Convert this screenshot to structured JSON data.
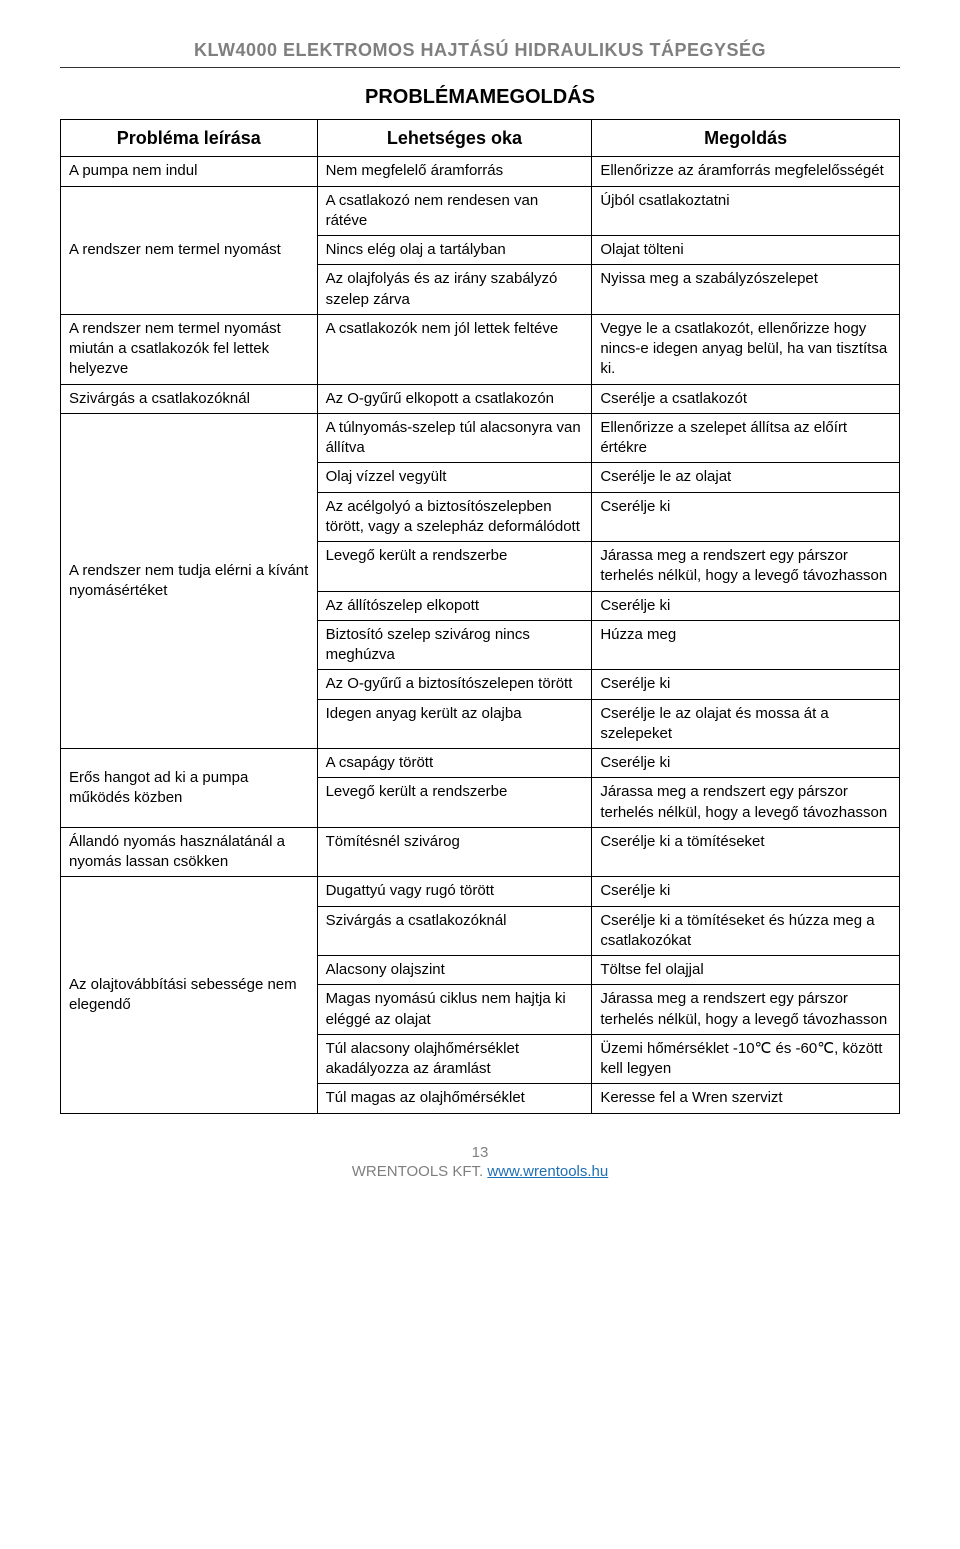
{
  "header": {
    "doc_title": "KLW4000 ELEKTROMOS HAJTÁSÚ HIDRAULIKUS TÁPEGYSÉG",
    "section_title": "PROBLÉMAMEGOLDÁS"
  },
  "table": {
    "columns": [
      "Probléma leírása",
      "Lehetséges oka",
      "Megoldás"
    ],
    "rows": [
      {
        "problem": "A pumpa nem indul",
        "cause": "Nem megfelelő áramforrás",
        "solution": "Ellenőrizze az áramforrás megfelelősségét",
        "rowspan": 1
      },
      {
        "problem": "A rendszer nem termel nyomást",
        "cause": "A csatlakozó nem rendesen van rátéve",
        "solution": "Újból csatlakoztatni",
        "rowspan": 3
      },
      {
        "cause": "Nincs elég olaj a tartályban",
        "solution": "Olajat tölteni"
      },
      {
        "cause": "Az olajfolyás és az irány szabályzó szelep zárva",
        "solution": "Nyissa meg a szabályzószelepet"
      },
      {
        "problem": "A rendszer nem termel nyomást miután a csatlakozók fel lettek helyezve",
        "cause": "A csatlakozók nem jól lettek feltéve",
        "solution": "Vegye le a csatlakozót, ellenőrizze hogy nincs-e idegen anyag belül, ha van tisztítsa ki.",
        "rowspan": 1
      },
      {
        "problem": "Szivárgás a csatlakozóknál",
        "cause": "Az O-gyűrű elkopott a csatlakozón",
        "solution": "Cserélje a csatlakozót",
        "rowspan": 1
      },
      {
        "problem": "A rendszer nem tudja elérni a kívánt nyomásértéket",
        "cause": "A túlnyomás-szelep túl alacsonyra van állítva",
        "solution": "Ellenőrizze a szelepet állítsa az előírt értékre",
        "rowspan": 8
      },
      {
        "cause": "Olaj vízzel vegyült",
        "solution": "Cserélje le az olajat"
      },
      {
        "cause": "Az acélgolyó a biztosítószelepben törött, vagy a szelepház deformálódott",
        "solution": "Cserélje ki"
      },
      {
        "cause": "Levegő került a rendszerbe",
        "solution": "Járassa meg a rendszert egy párszor terhelés nélkül, hogy a levegő távozhasson"
      },
      {
        "cause": "Az állítószelep elkopott",
        "solution": "Cserélje ki"
      },
      {
        "cause": "Biztosító szelep szivárog nincs meghúzva",
        "solution": "Húzza meg"
      },
      {
        "cause": "Az O-gyűrű a biztosítószelepen törött",
        "solution": "Cserélje ki"
      },
      {
        "cause": "Idegen anyag került az olajba",
        "solution": "Cserélje le az olajat és mossa át a szelepeket"
      },
      {
        "problem": "Erős hangot ad ki a pumpa működés közben",
        "cause": "A csapágy törött",
        "solution": "Cserélje ki",
        "rowspan": 2
      },
      {
        "cause": "Levegő került a rendszerbe",
        "solution": "Járassa meg a rendszert egy párszor terhelés nélkül, hogy a levegő távozhasson"
      },
      {
        "problem": "Állandó nyomás használatánál a nyomás lassan csökken",
        "cause": "Tömítésnél szivárog",
        "solution": "Cserélje ki a tömítéseket",
        "rowspan": 1
      },
      {
        "problem": "Az olajtovábbítási sebessége nem elegendő",
        "cause": "Dugattyú vagy rugó törött",
        "solution": "Cserélje ki",
        "rowspan": 6
      },
      {
        "cause": "Szivárgás a csatlakozóknál",
        "solution": "Cserélje ki a tömítéseket és húzza meg a csatlakozókat"
      },
      {
        "cause": "Alacsony olajszint",
        "solution": "Töltse fel olajjal"
      },
      {
        "cause": "Magas nyomású ciklus nem hajtja ki eléggé az olajat",
        "solution": "Járassa meg a rendszert egy párszor terhelés nélkül, hogy a levegő távozhasson"
      },
      {
        "cause": "Túl alacsony olajhőmérséklet akadályozza az áramlást",
        "solution": "Üzemi hőmérséklet -10℃ és -60℃, között kell legyen"
      },
      {
        "cause": "Túl magas az olajhőmérséklet",
        "solution": "Keresse fel a Wren szervizt"
      }
    ]
  },
  "footer": {
    "page_number": "13",
    "company": "WRENTOOLS KFT. ",
    "url": "www.wrentools.hu"
  },
  "colors": {
    "header_gray": "#7f7f7f",
    "link_blue": "#1f6fb5",
    "border": "#000000",
    "background": "#ffffff"
  }
}
